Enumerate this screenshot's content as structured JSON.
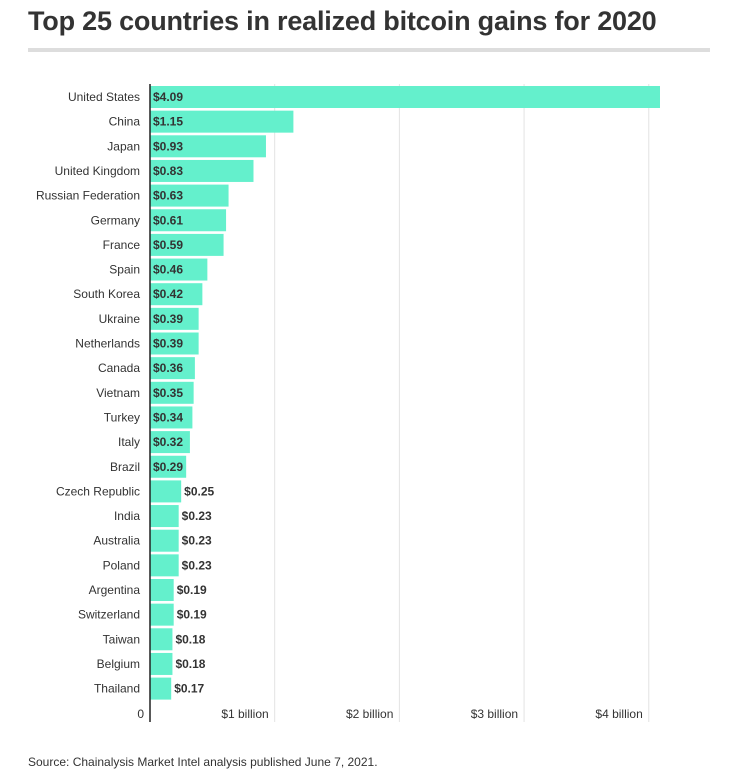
{
  "title": "Top 25 countries in realized bitcoin gains for 2020",
  "source": "Source: Chainalysis Market Intel analysis published June 7, 2021.",
  "colors": {
    "bar": "#64f0cc",
    "grid": "#e3e3e3",
    "axis": "#222222",
    "text": "#333333"
  },
  "chart_data": {
    "type": "bar",
    "orientation": "horizontal",
    "title": "Top 25 countries in realized bitcoin gains for 2020",
    "categories": [
      "United States",
      "China",
      "Japan",
      "United Kingdom",
      "Russian Federation",
      "Germany",
      "France",
      "Spain",
      "South Korea",
      "Ukraine",
      "Netherlands",
      "Canada",
      "Vietnam",
      "Turkey",
      "Italy",
      "Brazil",
      "Czech Republic",
      "India",
      "Australia",
      "Poland",
      "Argentina",
      "Switzerland",
      "Taiwan",
      "Belgium",
      "Thailand"
    ],
    "values": [
      4.09,
      1.15,
      0.93,
      0.83,
      0.63,
      0.61,
      0.59,
      0.46,
      0.42,
      0.39,
      0.39,
      0.36,
      0.35,
      0.34,
      0.32,
      0.29,
      0.25,
      0.23,
      0.23,
      0.23,
      0.19,
      0.19,
      0.18,
      0.18,
      0.17
    ],
    "value_labels": [
      "$4.09",
      "$1.15",
      "$0.93",
      "$0.83",
      "$0.63",
      "$0.61",
      "$0.59",
      "$0.46",
      "$0.42",
      "$0.39",
      "$0.39",
      "$0.36",
      "$0.35",
      "$0.34",
      "$0.32",
      "$0.29",
      "$0.25",
      "$0.23",
      "$0.23",
      "$0.23",
      "$0.19",
      "$0.19",
      "$0.18",
      "$0.18",
      "$0.17"
    ],
    "x_ticks": [
      0,
      1,
      2,
      3,
      4
    ],
    "x_tick_labels": [
      "0",
      "$1 billion",
      "$2 billion",
      "$3 billion",
      "$4 billion"
    ],
    "xlim": [
      0,
      4.09
    ],
    "xlabel": "",
    "ylabel": "",
    "grid": true,
    "legend": "none"
  }
}
